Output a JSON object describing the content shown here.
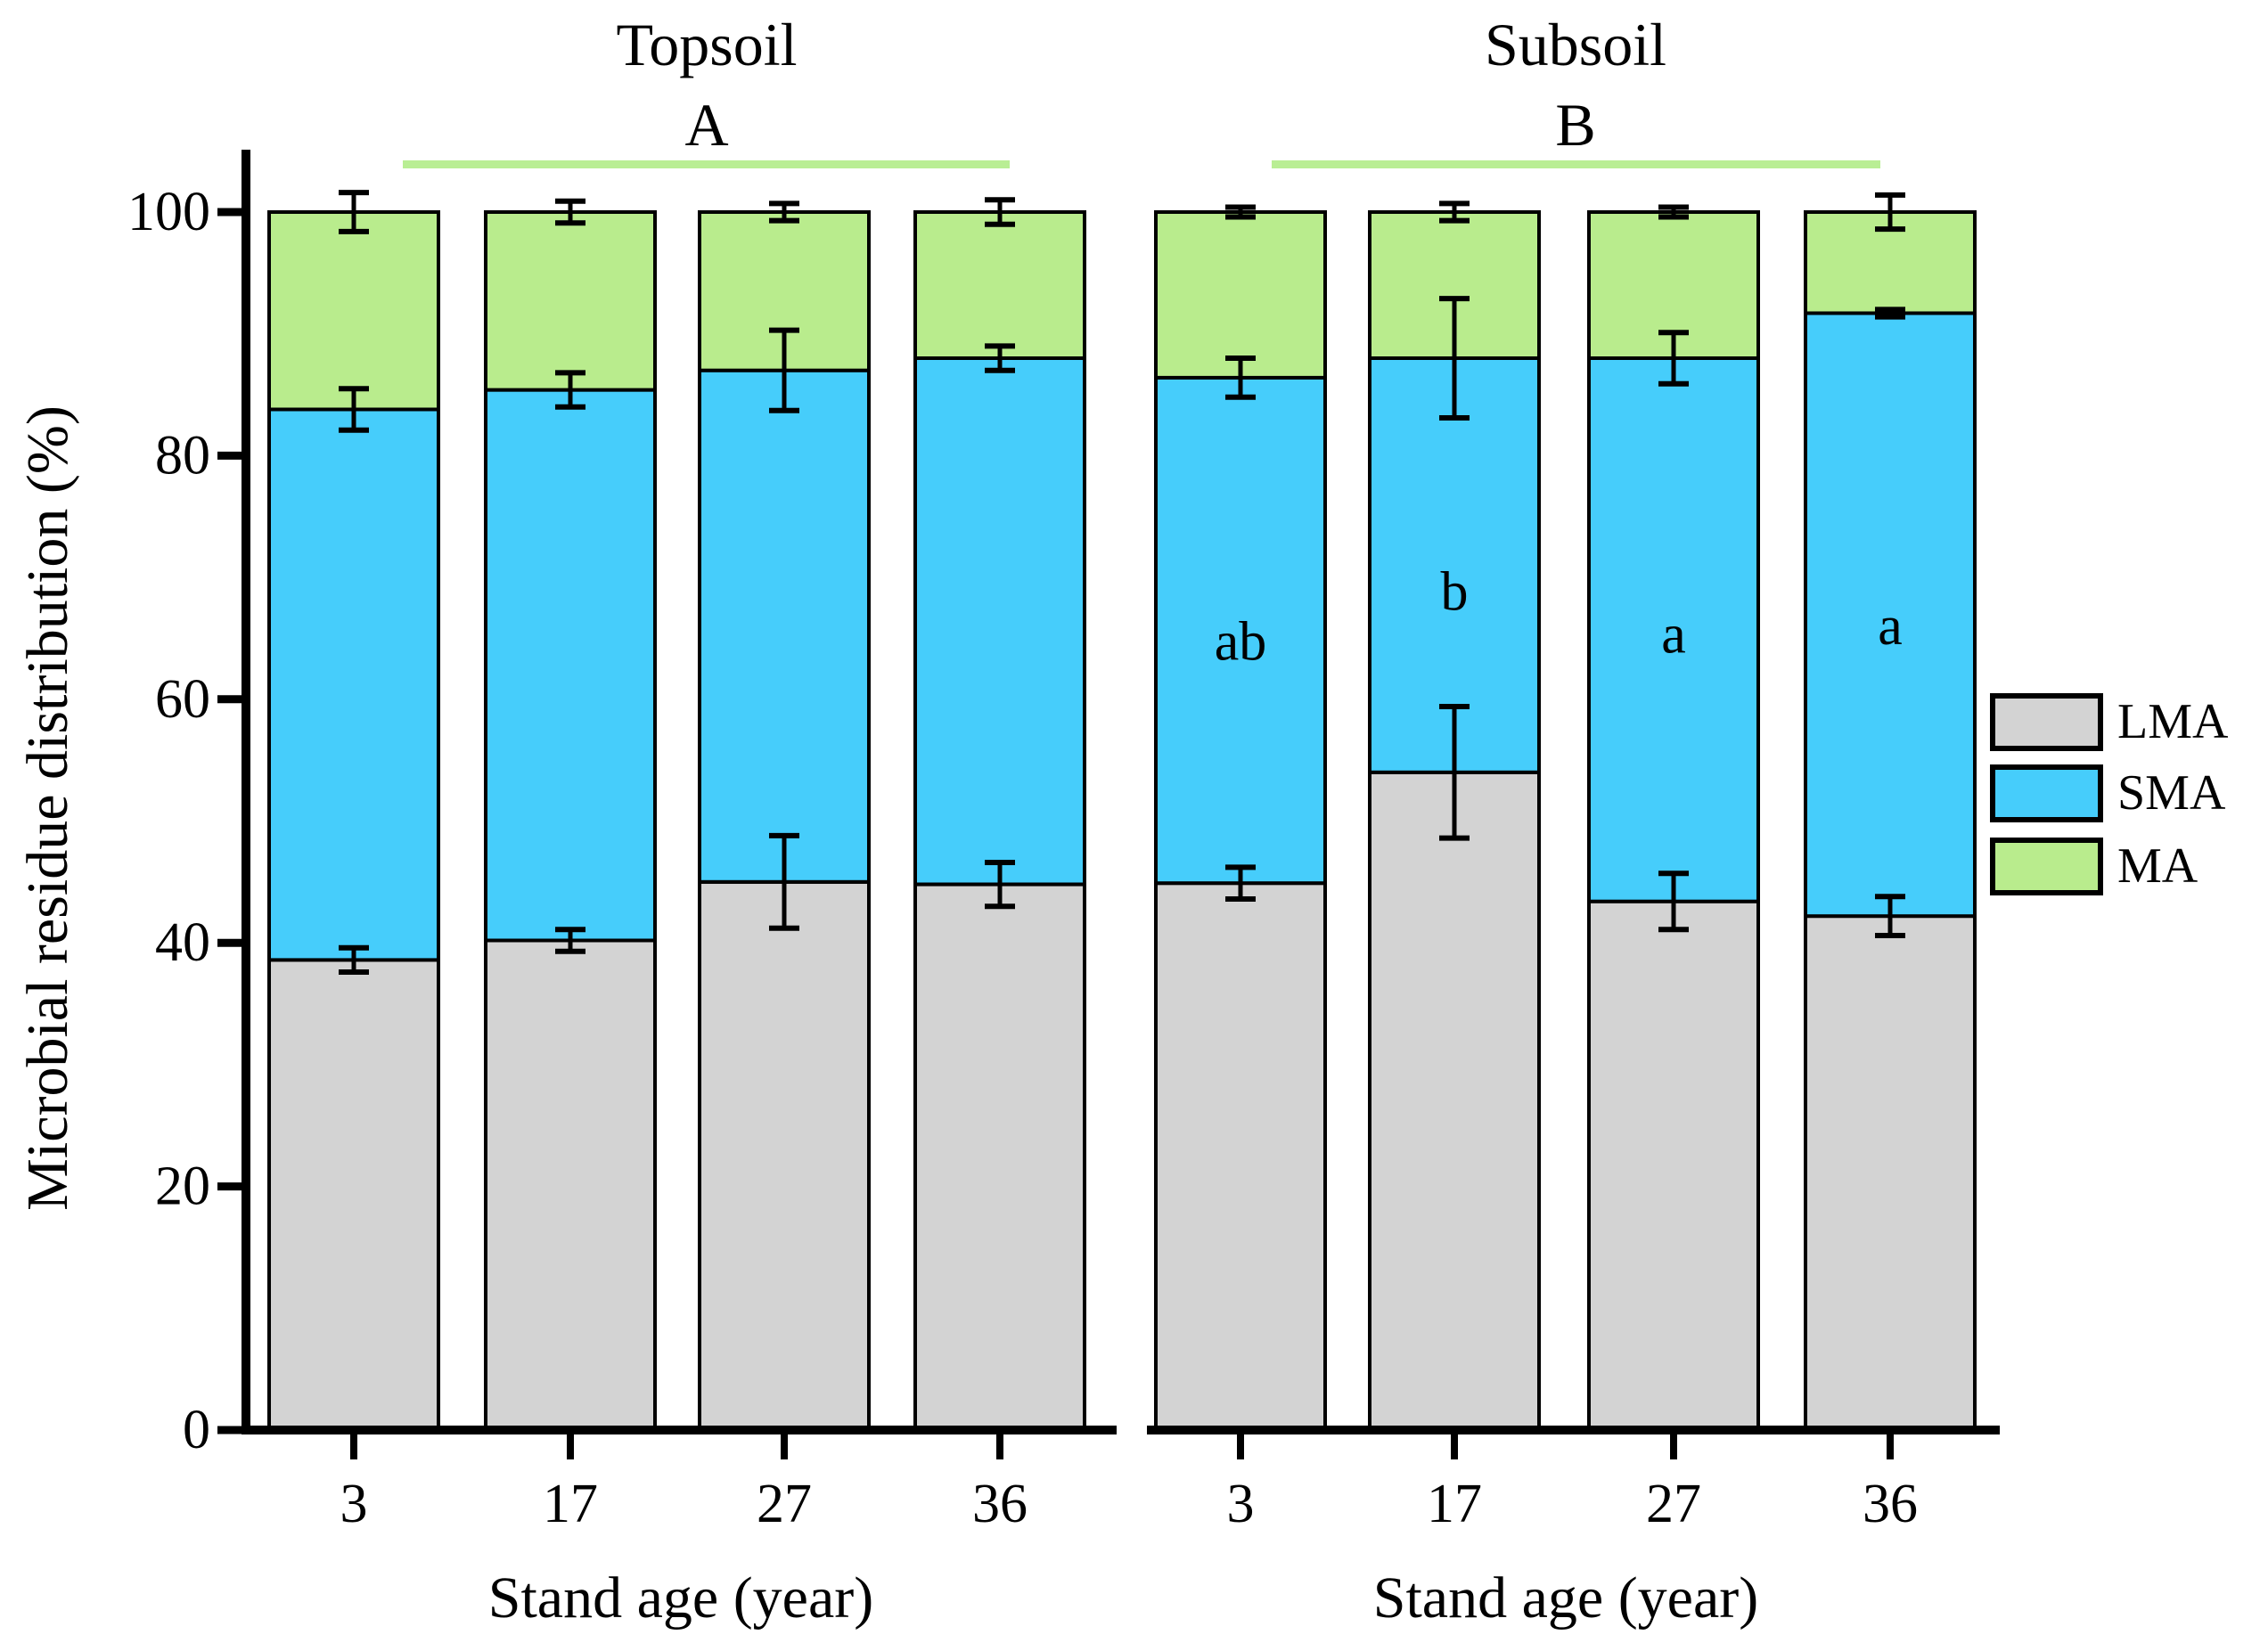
{
  "chart_data": {
    "type": "bar",
    "stacked": true,
    "ylabel": "Microbial residue distribution (%)",
    "xlabel": "Stand age (year)",
    "ylim": [
      0,
      100
    ],
    "yticks": [
      0,
      20,
      40,
      60,
      80,
      100
    ],
    "legend_position": "right",
    "legend": [
      {
        "label": "LMA",
        "color": "#d3d3d3"
      },
      {
        "label": "SMA",
        "color": "#46cdfb"
      },
      {
        "label": "MA",
        "color": "#b9ec8d"
      }
    ],
    "accent_line_color": "#b9ee94",
    "panels": [
      {
        "title": "Topsoil",
        "panel_letter": "A",
        "categories": [
          "3",
          "17",
          "27",
          "36"
        ],
        "series": [
          {
            "name": "LMA",
            "values": [
              38.6,
              40.2,
              45.0,
              44.8
            ]
          },
          {
            "name": "SMA",
            "values": [
              45.2,
              45.2,
              42.0,
              43.2
            ]
          },
          {
            "name": "MA",
            "values": [
              16.2,
              14.6,
              13.0,
              12.0
            ]
          }
        ],
        "error_bars": {
          "lma_top": [
            1.0,
            0.9,
            3.8,
            1.8
          ],
          "lma_sma_top": [
            1.7,
            1.4,
            3.3,
            1.0
          ],
          "total_top": [
            1.6,
            0.9,
            0.7,
            1.0
          ]
        },
        "sig_letters": [
          "",
          "",
          "",
          ""
        ],
        "sig_letter_y": [
          null,
          null,
          null,
          null
        ]
      },
      {
        "title": "Subsoil",
        "panel_letter": "B",
        "categories": [
          "3",
          "17",
          "27",
          "36"
        ],
        "series": [
          {
            "name": "LMA",
            "values": [
              44.9,
              54.0,
              43.4,
              42.2
            ]
          },
          {
            "name": "SMA",
            "values": [
              41.5,
              34.0,
              44.6,
              49.5
            ]
          },
          {
            "name": "MA",
            "values": [
              13.6,
              12.0,
              12.0,
              8.3
            ]
          }
        ],
        "error_bars": {
          "lma_top": [
            1.3,
            5.4,
            2.3,
            1.6
          ],
          "lma_sma_top": [
            1.6,
            4.9,
            2.1,
            0.3
          ],
          "total_top": [
            0.4,
            0.7,
            0.4,
            1.4
          ]
        },
        "sig_letters": [
          "ab",
          "b",
          "a",
          "a"
        ],
        "sig_letter_y": [
          64.7,
          68.8,
          65.3,
          66.0
        ]
      }
    ]
  }
}
